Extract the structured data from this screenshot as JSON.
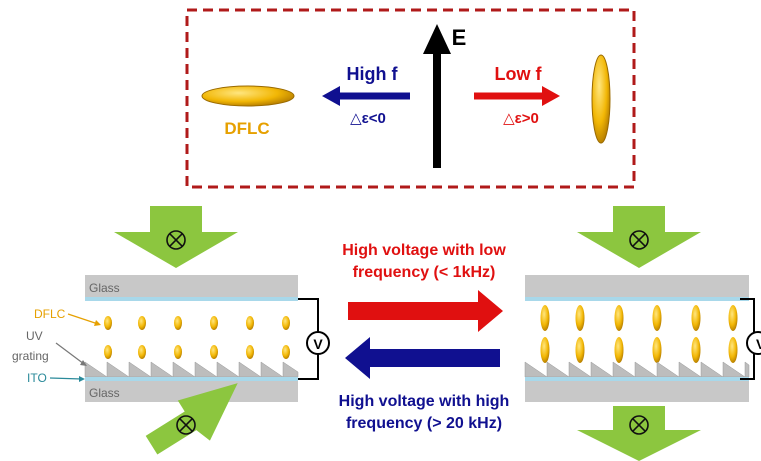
{
  "inset": {
    "field_label": "E",
    "high_f_label": "High f",
    "low_f_label": "Low f",
    "neg_anisotropy": "△ε<0",
    "pos_anisotropy": "△ε>0",
    "material_label": "DFLC"
  },
  "cell_labels": {
    "glass_top": "Glass",
    "glass_bottom": "Glass",
    "dflc": "DFLC",
    "uv_line1": "UV",
    "uv_line2": "grating",
    "ito": "ITO",
    "voltage_symbol": "V"
  },
  "switching": {
    "low_freq_line1": "High voltage with low",
    "low_freq_line2": "frequency (< 1kHz)",
    "high_freq_line1": "High voltage with high",
    "high_freq_line2": "frequency (> 20 kHz)"
  },
  "light_symbol": "⊗",
  "colors": {
    "dflc_gold": "#F2B705",
    "low_freq_red": "#E01010",
    "high_freq_navy": "#101090",
    "light_green": "#8CC63F",
    "glass_gray": "#C8C8C8",
    "ito_blue": "#A8D8EA",
    "border_red": "#B01A1A",
    "label_orange": "#E6A000",
    "label_teal": "#2A8A9A"
  }
}
